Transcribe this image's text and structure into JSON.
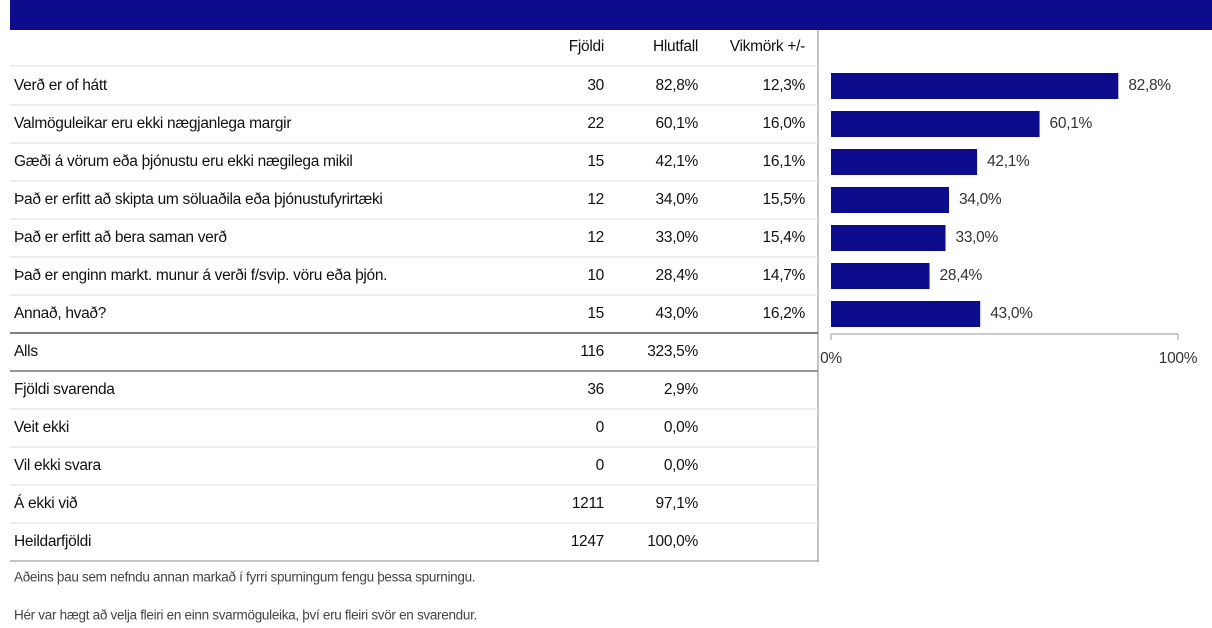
{
  "table": {
    "headers": [
      "Fjöldi",
      "Hlutfall",
      "Vikmörk +/-"
    ],
    "rows": [
      [
        "Verð er of hátt",
        30,
        "82,8%",
        "12,3%"
      ],
      [
        "Valmöguleikar eru ekki nægjanlega margir",
        22,
        "60,1%",
        "16,0%"
      ],
      [
        "Gæði á vörum eða þjónustu eru ekki nægilega mikil",
        15,
        "42,1%",
        "16,1%"
      ],
      [
        "Það er erfitt að skipta um söluaðila eða þjónustufyrirtæki",
        12,
        "34,0%",
        "15,5%"
      ],
      [
        "Það er erfitt að bera saman verð",
        12,
        "33,0%",
        "15,4%"
      ],
      [
        "Það er enginn markt. munur á verði f/svip. vöru eða þjón.",
        10,
        "28,4%",
        "14,7%"
      ],
      [
        "Annað, hvað?",
        15,
        "43,0%",
        "16,2%"
      ],
      [
        "Alls",
        116,
        "323,5%"
      ],
      [
        "Fjöldi svarenda",
        36,
        "2,9%"
      ],
      [
        "Veit ekki",
        0,
        "0,0%"
      ],
      [
        "Vil ekki svara",
        0,
        "0,0%"
      ],
      [
        "Á ekki við",
        1211,
        "97,1%"
      ],
      [
        "Heildarfjöldi",
        1247,
        "100,0%"
      ]
    ],
    "footnotes": [
      "Aðeins þau sem nefndu annan markað í fyrri spurningum fengu þessa spurningu.",
      "Hér var hægt að velja fleiri en einn svarmöguleika, því eru fleiri svör en svarendur."
    ]
  },
  "chart_data": {
    "type": "bar",
    "orientation": "horizontal",
    "values": [
      82.8,
      60.1,
      42.1,
      34.0,
      33.0,
      28.4,
      43.0
    ],
    "value_labels": [
      "82,8%",
      "60,1%",
      "42,1%",
      "34,0%",
      "33,0%",
      "28,4%",
      "43,0%"
    ],
    "xlim": [
      0,
      100
    ],
    "xticks": [
      {
        "value": 0,
        "label": "0%"
      },
      {
        "value": 100,
        "label": "100%"
      }
    ],
    "color": "#0c0c8c"
  }
}
